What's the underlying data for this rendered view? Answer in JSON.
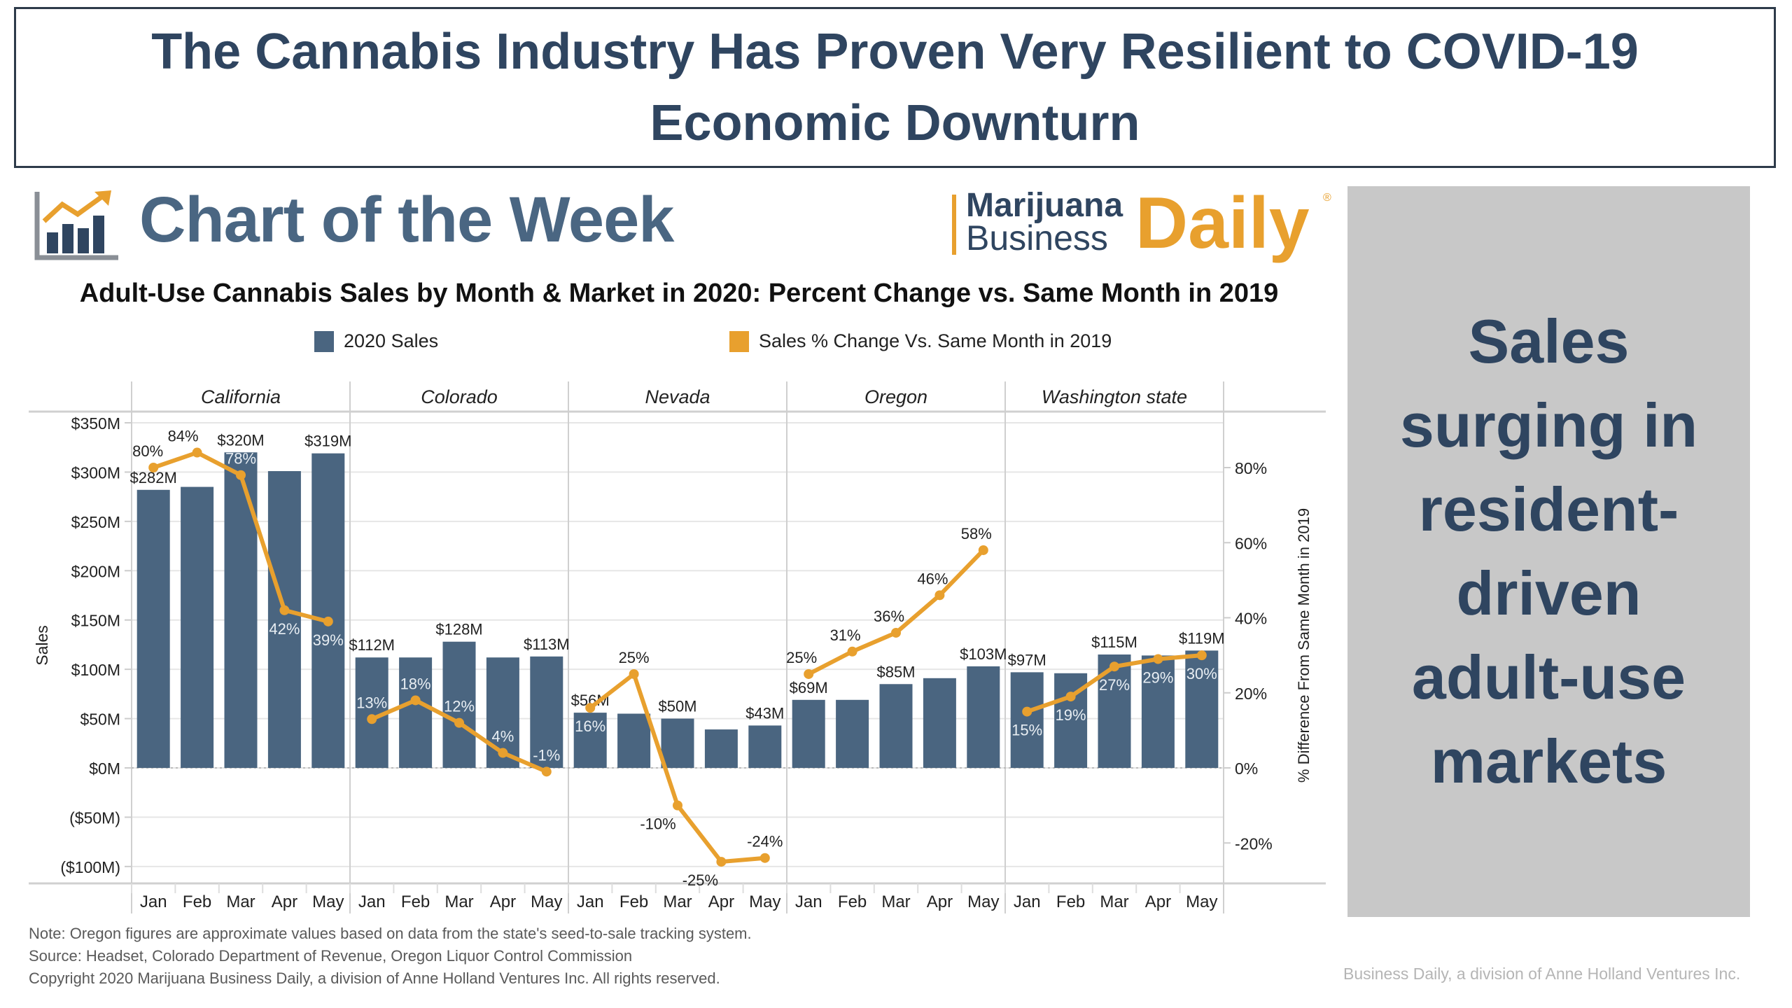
{
  "title": "The Cannabis Industry Has Proven Very Resilient to COVID-19 Economic Downturn",
  "header": {
    "chart_of_week": "Chart of the Week",
    "logo": {
      "line1": "Marijuana",
      "line2": "Business",
      "word": "Daily",
      "mark": "®"
    }
  },
  "side_panel": {
    "text": "Sales surging in resident-driven adult-use markets"
  },
  "footer": {
    "note": "Note: Oregon figures are approximate values based on data from the state's seed-to-sale tracking system.",
    "source": "Source: Headset, Colorado Department of Revenue, Oregon Liquor Control Commission",
    "copyright": "Copyright 2020 Marijuana Business Daily, a division of Anne Holland Ventures Inc. All rights reserved.",
    "watermark": "Business Daily, a division of Anne Holland Ventures Inc."
  },
  "colors": {
    "bar": "#4a6580",
    "line": "#e8a02e",
    "title": "#2f4560",
    "side_bg": "#c8c8c8"
  },
  "chart_data": {
    "type": "bar+line",
    "title": "Adult-Use Cannabis Sales by Month & Market in 2020: Percent Change vs. Same Month in 2019",
    "legend": [
      "2020 Sales",
      "Sales % Change Vs. Same Month in 2019"
    ],
    "legend_position": "top",
    "ylabel": "Sales",
    "y2label": "% Difference From Same Month in 2019",
    "ylim": [
      -100,
      350
    ],
    "y2lim": [
      -30,
      90
    ],
    "yticks": [
      "$350M",
      "$300M",
      "$250M",
      "$200M",
      "$150M",
      "$100M",
      "$50M",
      "$0M",
      "($50M)",
      "($100M)"
    ],
    "ytick_values": [
      350,
      300,
      250,
      200,
      150,
      100,
      50,
      0,
      -50,
      -100
    ],
    "y2ticks": [
      "80%",
      "60%",
      "40%",
      "20%",
      "0%",
      "-20%"
    ],
    "y2tick_values": [
      80,
      60,
      40,
      20,
      0,
      -20
    ],
    "grid": true,
    "months": [
      "Jan",
      "Feb",
      "Mar",
      "Apr",
      "May"
    ],
    "markets": [
      {
        "name": "California",
        "sales": [
          282,
          285,
          320,
          301,
          319
        ],
        "sales_labels": [
          "$282M",
          "",
          "$320M",
          "",
          "$319M"
        ],
        "pct": [
          80,
          84,
          78,
          42,
          39
        ],
        "pct_labels": [
          "80%",
          "84%",
          "78%",
          "42%",
          "39%"
        ]
      },
      {
        "name": "Colorado",
        "sales": [
          112,
          112,
          128,
          112,
          113
        ],
        "sales_labels": [
          "$112M",
          "",
          "$128M",
          "",
          "$113M"
        ],
        "pct": [
          13,
          18,
          12,
          4,
          -1
        ],
        "pct_labels": [
          "13%",
          "18%",
          "12%",
          "4%",
          "-1%"
        ]
      },
      {
        "name": "Nevada",
        "sales": [
          56,
          55,
          50,
          39,
          43
        ],
        "sales_labels": [
          "$56M",
          "",
          "$50M",
          "",
          "$43M"
        ],
        "pct": [
          16,
          25,
          -10,
          -25,
          -24
        ],
        "pct_labels": [
          "16%",
          "25%",
          "-10%",
          "-25%",
          "-24%"
        ]
      },
      {
        "name": "Oregon",
        "sales": [
          69,
          69,
          85,
          91,
          103
        ],
        "sales_labels": [
          "$69M",
          "",
          "$85M",
          "",
          "$103M"
        ],
        "pct": [
          25,
          31,
          36,
          46,
          58
        ],
        "pct_labels": [
          "25%",
          "31%",
          "36%",
          "46%",
          "58%"
        ]
      },
      {
        "name": "Washington state",
        "sales": [
          97,
          96,
          115,
          114,
          119
        ],
        "sales_labels": [
          "$97M",
          "",
          "$115M",
          "",
          "$119M"
        ],
        "pct": [
          15,
          19,
          27,
          29,
          30
        ],
        "pct_labels": [
          "15%",
          "19%",
          "27%",
          "29%",
          "30%"
        ]
      }
    ]
  }
}
